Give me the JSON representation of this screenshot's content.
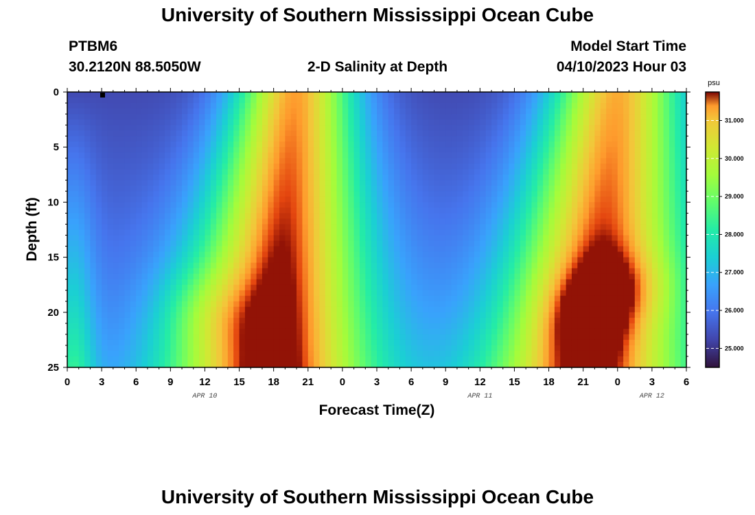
{
  "header": {
    "title": "University of Southern Mississippi Ocean Cube",
    "station_id": "PTBM6",
    "station_coords": "30.2120N  88.5050W",
    "plot_name": "2-D Salinity at Depth",
    "model_start_label": "Model Start Time",
    "model_start_value": "04/10/2023 Hour 03"
  },
  "footer": {
    "title": "University of Southern Mississippi Ocean Cube"
  },
  "chart_data": {
    "type": "heatmap",
    "title": "2-D Salinity at Depth",
    "xlabel": "Forecast Time(Z)",
    "ylabel": "Depth (ft)",
    "x_range_hours": [
      0,
      54
    ],
    "x_tick_labels": [
      "0",
      "3",
      "6",
      "9",
      "12",
      "15",
      "18",
      "21",
      "0",
      "3",
      "6",
      "9",
      "12",
      "15",
      "18",
      "21",
      "0",
      "3",
      "6"
    ],
    "date_labels": [
      {
        "text": "APR 10",
        "hour": 12
      },
      {
        "text": "APR 11",
        "hour": 36
      },
      {
        "text": "APR 12",
        "hour": 51
      }
    ],
    "y_range_ft": [
      0,
      25
    ],
    "y_ticks": [
      0,
      5,
      10,
      15,
      20,
      25
    ],
    "colorbar": {
      "unit": "psu",
      "min": 24.5,
      "max": 31.75,
      "ticks": [
        "25.000",
        "26.000",
        "27.000",
        "28.000",
        "29.000",
        "30.000",
        "31.000"
      ]
    },
    "salinity_min": 24.8,
    "salinity_max": 31.7
  }
}
